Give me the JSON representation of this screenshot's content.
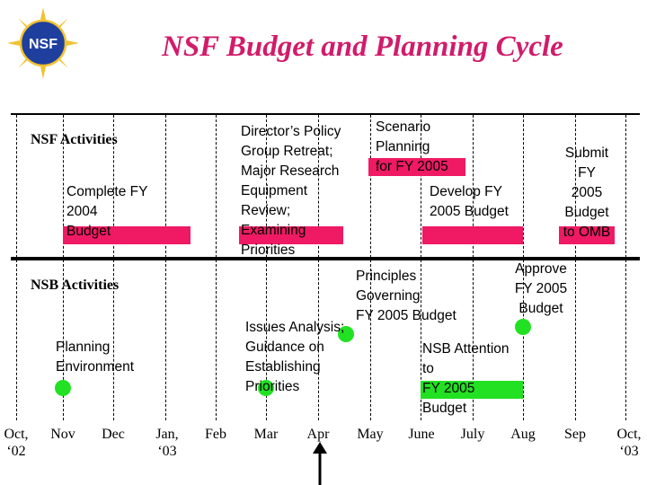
{
  "title": "NSF Budget and Planning Cycle",
  "logo_text": "NSF",
  "nsf_activities_label": "NSF Activities",
  "nsb_activities_label": "NSB Activities",
  "items": {
    "complete_fy2004": "Complete FY\n2004\nBudget",
    "directors_retreat": "Director’s Policy\nGroup Retreat;\nMajor Research\nEquipment\nReview;\nExamining\nPriorities",
    "scenario_planning": "Scenario\nPlanning\nfor FY 2005",
    "develop_fy2005": "Develop FY\n2005 Budget",
    "submit_omb": "Submit\nFY\n2005\nBudget\nto OMB",
    "planning_environment": "Planning\nEnvironment",
    "issues_analysis": "Issues Analysis;\nGuidance on\nEstablishing\nPriorities",
    "principles": "Principles\nGoverning\nFY 2005 Budget",
    "approve_fy2005": "Approve\nFY 2005\nBudget",
    "nsb_attention": "NSB Attention\nto\nFY 2005\nBudget"
  },
  "months": [
    "Oct,\n‘02",
    "Nov",
    "Dec",
    "Jan,\n‘03",
    "Feb",
    "Mar",
    "Apr",
    "May",
    "June",
    "July",
    "Aug",
    "Sep",
    "Oct,\n‘03"
  ],
  "colors": {
    "title": "#d11c6a",
    "red_bar": "#ef1a63",
    "green": "#22e122",
    "seal_blue": "#1f3f9e",
    "seal_gold": "#f1c232"
  }
}
